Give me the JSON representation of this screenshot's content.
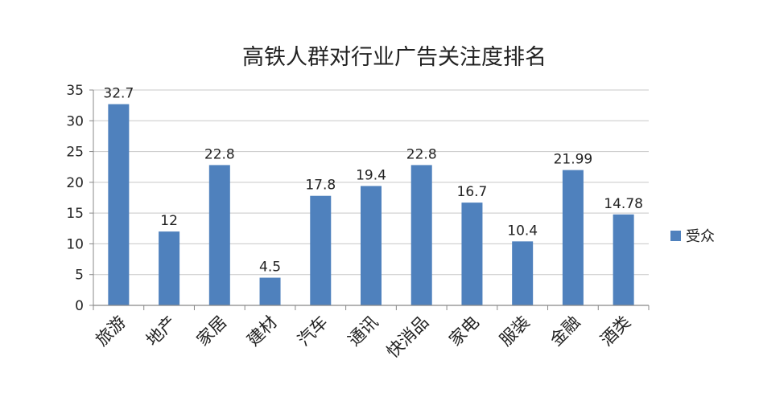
{
  "chart_data": {
    "type": "bar",
    "title": "高铁人群对行业广告关注度排名",
    "categories": [
      "旅游",
      "地产",
      "家居",
      "建材",
      "汽车",
      "通讯",
      "快消品",
      "家电",
      "服装",
      "金融",
      "酒类"
    ],
    "series": [
      {
        "name": "受众",
        "values": [
          32.7,
          12,
          22.8,
          4.5,
          17.8,
          19.4,
          22.8,
          16.7,
          10.4,
          21.99,
          14.78
        ],
        "color": "#4f81bd"
      }
    ],
    "data_labels": [
      "32.7",
      "12",
      "22.8",
      "4.5",
      "17.8",
      "19.4",
      "22.8",
      "16.7",
      "10.4",
      "21.99",
      "14.78"
    ],
    "ylim": [
      0,
      35
    ],
    "yticks": [
      "0",
      "5",
      "10",
      "15",
      "20",
      "25",
      "30",
      "35"
    ],
    "xlabel": "",
    "ylabel": "",
    "grid": true,
    "legend": "right"
  }
}
